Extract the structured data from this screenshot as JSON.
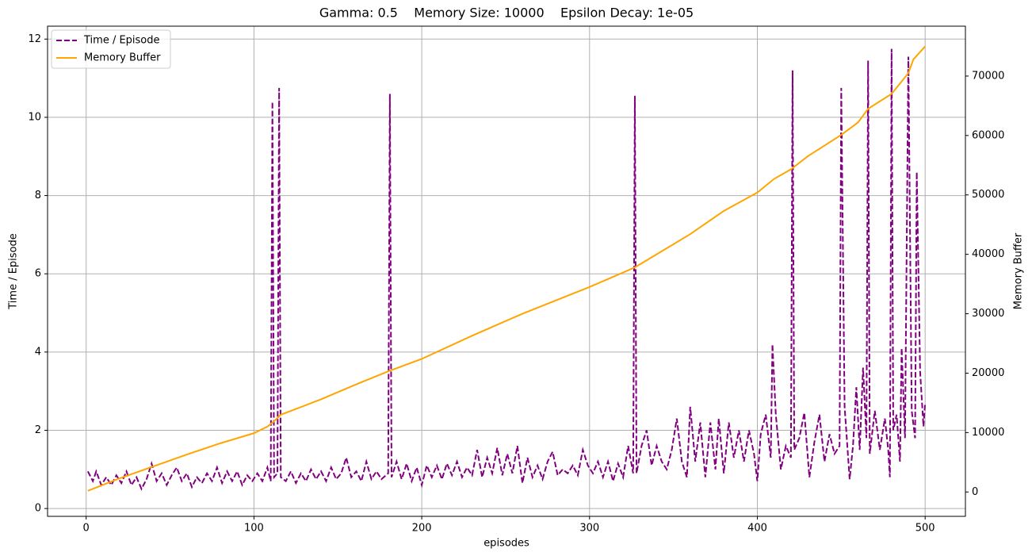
{
  "chart_data": {
    "type": "line",
    "title": "Gamma: 0.5    Memory Size: 10000    Epsilon Decay: 1e-05",
    "xlabel": "episodes",
    "ylabel": "Time / Episode",
    "y2label": "Memory Buffer",
    "xlim": [
      -23,
      524
    ],
    "ylim": [
      -0.2,
      12.33
    ],
    "y2lim": [
      -4100,
      78400
    ],
    "xticks": [
      0,
      100,
      200,
      300,
      400,
      500
    ],
    "yticks": [
      0,
      2,
      4,
      6,
      8,
      10,
      12
    ],
    "y2ticks": [
      0,
      10000,
      20000,
      30000,
      40000,
      50000,
      60000,
      70000
    ],
    "grid": true,
    "legend": "upper left",
    "series": [
      {
        "name": "Time / Episode",
        "color": "#800080",
        "style": "dashed",
        "x": [
          1,
          4,
          6,
          9,
          12,
          15,
          18,
          21,
          24,
          27,
          30,
          33,
          36,
          39,
          42,
          45,
          48,
          51,
          54,
          57,
          60,
          63,
          66,
          69,
          72,
          75,
          78,
          81,
          84,
          87,
          90,
          93,
          96,
          99,
          102,
          105,
          108,
          110,
          111,
          112,
          114,
          115,
          116,
          119,
          122,
          125,
          128,
          131,
          134,
          137,
          140,
          143,
          146,
          149,
          152,
          155,
          158,
          161,
          164,
          167,
          170,
          173,
          176,
          180,
          181,
          182,
          185,
          188,
          191,
          194,
          197,
          200,
          203,
          206,
          209,
          212,
          215,
          218,
          221,
          224,
          227,
          230,
          233,
          236,
          239,
          242,
          245,
          248,
          251,
          254,
          257,
          260,
          263,
          266,
          269,
          272,
          275,
          278,
          281,
          284,
          287,
          290,
          293,
          296,
          299,
          302,
          305,
          308,
          311,
          314,
          317,
          320,
          323,
          326,
          327,
          328,
          331,
          334,
          337,
          340,
          343,
          346,
          349,
          352,
          355,
          358,
          360,
          363,
          366,
          369,
          372,
          375,
          377,
          380,
          383,
          386,
          389,
          392,
          395,
          398,
          400,
          402,
          405,
          408,
          409,
          411,
          414,
          417,
          420,
          421,
          422,
          425,
          428,
          431,
          434,
          437,
          440,
          443,
          446,
          449,
          450,
          452,
          455,
          457,
          459,
          461,
          463,
          465,
          466,
          467,
          470,
          473,
          476,
          478,
          479,
          480,
          481,
          483,
          485,
          486,
          488,
          490,
          492,
          494,
          495,
          497,
          499,
          500
        ],
        "values": [
          0.95,
          0.7,
          0.95,
          0.6,
          0.8,
          0.6,
          0.85,
          0.65,
          0.95,
          0.6,
          0.8,
          0.5,
          0.75,
          1.15,
          0.7,
          0.9,
          0.6,
          0.85,
          1.05,
          0.7,
          0.9,
          0.55,
          0.8,
          0.65,
          0.9,
          0.7,
          1.05,
          0.65,
          0.95,
          0.7,
          0.95,
          0.6,
          0.85,
          0.7,
          0.9,
          0.7,
          1.05,
          0.7,
          10.4,
          0.8,
          0.9,
          10.75,
          0.8,
          0.7,
          0.95,
          0.65,
          0.9,
          0.7,
          1.0,
          0.75,
          0.95,
          0.7,
          1.05,
          0.75,
          0.9,
          1.3,
          0.8,
          0.95,
          0.7,
          1.2,
          0.75,
          0.95,
          0.75,
          0.9,
          10.6,
          0.8,
          1.2,
          0.75,
          1.15,
          0.7,
          1.05,
          0.6,
          1.1,
          0.8,
          1.1,
          0.75,
          1.15,
          0.85,
          1.2,
          0.8,
          1.05,
          0.85,
          1.5,
          0.8,
          1.3,
          0.9,
          1.55,
          0.85,
          1.4,
          0.9,
          1.6,
          0.65,
          1.3,
          0.8,
          1.1,
          0.75,
          1.2,
          1.45,
          0.85,
          1.0,
          0.9,
          1.1,
          0.85,
          1.5,
          1.1,
          0.9,
          1.2,
          0.8,
          1.2,
          0.7,
          1.15,
          0.8,
          1.6,
          0.9,
          10.55,
          0.9,
          1.6,
          2.0,
          1.1,
          1.6,
          1.2,
          1.0,
          1.5,
          2.3,
          1.2,
          0.8,
          2.6,
          1.2,
          2.2,
          0.8,
          2.2,
          1.0,
          2.3,
          0.9,
          2.2,
          1.3,
          2.0,
          1.2,
          2.0,
          1.4,
          0.7,
          1.9,
          2.4,
          1.3,
          4.2,
          2.4,
          1.0,
          1.6,
          1.3,
          11.2,
          1.5,
          1.8,
          2.45,
          0.8,
          1.7,
          2.4,
          1.2,
          1.9,
          1.4,
          1.6,
          10.75,
          2.6,
          0.75,
          1.6,
          3.1,
          1.5,
          3.6,
          1.8,
          11.45,
          1.4,
          2.5,
          1.5,
          2.3,
          1.5,
          0.8,
          11.75,
          2.0,
          2.4,
          1.2,
          4.1,
          1.8,
          11.55,
          2.5,
          1.8,
          8.6,
          3.5,
          2.1,
          2.7
        ]
      },
      {
        "name": "Memory Buffer",
        "color": "#ffa500",
        "style": "solid",
        "axis": "y2",
        "x": [
          1,
          20,
          40,
          60,
          80,
          100,
          108,
          112,
          116,
          140,
          160,
          180,
          200,
          230,
          260,
          300,
          327,
          340,
          360,
          380,
          400,
          410,
          420,
          430,
          450,
          460,
          466,
          480,
          490,
          493,
          500
        ],
        "values": [
          200,
          2300,
          4300,
          6300,
          8200,
          9900,
          11000,
          11900,
          13000,
          15600,
          18000,
          20300,
          22400,
          26300,
          30000,
          34500,
          37800,
          40000,
          43400,
          47300,
          50400,
          52700,
          54300,
          56500,
          60100,
          62200,
          64500,
          67000,
          70500,
          72800,
          75000
        ]
      }
    ]
  }
}
